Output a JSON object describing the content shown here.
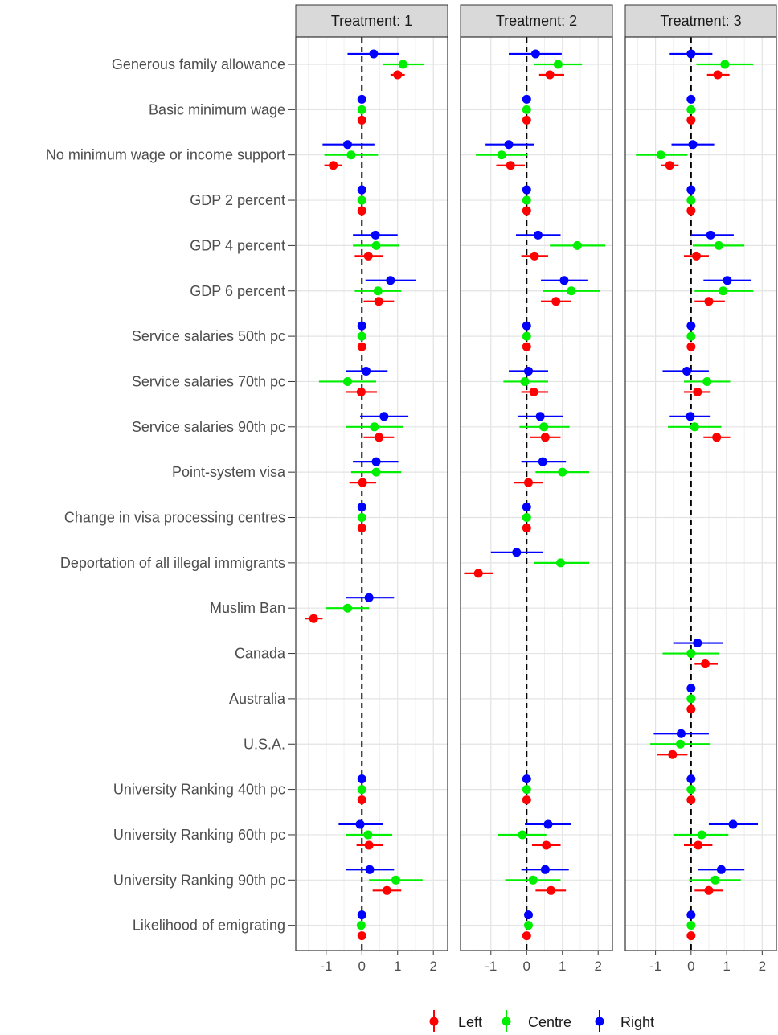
{
  "chart_data": {
    "type": "scatter",
    "subtype": "coefficient-plot-with-error-bars",
    "x_ticks": [
      -1,
      0,
      1,
      2
    ],
    "xlim": [
      -1.85,
      2.4
    ],
    "reference_line": 0,
    "grid": true,
    "legend_position": "bottom",
    "series": [
      {
        "name": "Left",
        "color": "#ff0000"
      },
      {
        "name": "Centre",
        "color": "#00ee00"
      },
      {
        "name": "Right",
        "color": "#0000ff"
      }
    ],
    "categories": [
      "Generous family allowance",
      "Basic minimum wage",
      "No minimum wage or income support",
      "GDP 2 percent",
      "GDP 4 percent",
      "GDP 6 percent",
      "Service salaries 50th pc",
      "Service salaries 70th pc",
      "Service salaries 90th pc",
      "Point-system visa",
      "Change in visa processing centres",
      "Deportation of all illegal immigrants",
      "Muslim Ban",
      "Canada",
      "Australia",
      "U.S.A.",
      "University Ranking 40th pc",
      "University Ranking 60th pc",
      "University Ranking 90th pc",
      "Likelihood of emigrating"
    ],
    "panels": [
      {
        "title": "Treatment: 1",
        "estimates": [
          {
            "Left": [
              1.0,
              0.8,
              1.2
            ],
            "Centre": [
              1.15,
              0.6,
              1.75
            ],
            "Right": [
              0.33,
              -0.4,
              1.05
            ]
          },
          {
            "Left": [
              0,
              0,
              0
            ],
            "Centre": [
              0,
              0,
              0
            ],
            "Right": [
              0,
              0,
              0
            ]
          },
          {
            "Left": [
              -0.8,
              -1.05,
              -0.55
            ],
            "Centre": [
              -0.3,
              -1.05,
              0.45
            ],
            "Right": [
              -0.4,
              -1.1,
              0.35
            ]
          },
          {
            "Left": [
              0,
              0,
              0
            ],
            "Centre": [
              0,
              0,
              0
            ],
            "Right": [
              0,
              0,
              0
            ]
          },
          {
            "Left": [
              0.18,
              -0.2,
              0.58
            ],
            "Centre": [
              0.4,
              -0.25,
              1.05
            ],
            "Right": [
              0.38,
              -0.25,
              1.0
            ]
          },
          {
            "Left": [
              0.47,
              0.05,
              0.9
            ],
            "Centre": [
              0.45,
              -0.2,
              1.1
            ],
            "Right": [
              0.8,
              0.1,
              1.5
            ]
          },
          {
            "Left": [
              0,
              0,
              0
            ],
            "Centre": [
              0,
              0,
              0
            ],
            "Right": [
              0,
              0,
              0
            ]
          },
          {
            "Left": [
              -0.02,
              -0.45,
              0.42
            ],
            "Centre": [
              -0.4,
              -1.2,
              0.4
            ],
            "Right": [
              0.12,
              -0.45,
              0.72
            ]
          },
          {
            "Left": [
              0.48,
              0.05,
              0.9
            ],
            "Centre": [
              0.35,
              -0.45,
              1.15
            ],
            "Right": [
              0.62,
              -0.05,
              1.3
            ]
          },
          {
            "Left": [
              0.02,
              -0.35,
              0.4
            ],
            "Centre": [
              0.4,
              -0.3,
              1.1
            ],
            "Right": [
              0.4,
              -0.25,
              1.02
            ]
          },
          {
            "Left": [
              0,
              0,
              0
            ],
            "Centre": [
              0,
              0,
              0
            ],
            "Right": [
              0,
              0,
              0
            ]
          },
          null,
          {
            "Left": [
              -1.35,
              -1.6,
              -1.1
            ],
            "Centre": [
              -0.4,
              -1.0,
              0.2
            ],
            "Right": [
              0.2,
              -0.45,
              0.9
            ]
          },
          null,
          null,
          null,
          {
            "Left": [
              0,
              0,
              0
            ],
            "Centre": [
              0,
              0,
              0
            ],
            "Right": [
              0,
              0,
              0
            ]
          },
          {
            "Left": [
              0.2,
              -0.15,
              0.6
            ],
            "Centre": [
              0.17,
              -0.45,
              0.85
            ],
            "Right": [
              -0.05,
              -0.65,
              0.58
            ]
          },
          {
            "Left": [
              0.7,
              0.3,
              1.1
            ],
            "Centre": [
              0.95,
              0.2,
              1.7
            ],
            "Right": [
              0.22,
              -0.45,
              0.9
            ]
          },
          {
            "Left": [
              0,
              0,
              0
            ],
            "Centre": [
              -0.02,
              -0.08,
              0.04
            ],
            "Right": [
              0,
              0,
              0
            ]
          }
        ]
      },
      {
        "title": "Treatment: 2",
        "estimates": [
          {
            "Left": [
              0.65,
              0.35,
              1.05
            ],
            "Centre": [
              0.88,
              0.2,
              1.55
            ],
            "Right": [
              0.25,
              -0.5,
              0.98
            ]
          },
          {
            "Left": [
              0,
              0,
              0
            ],
            "Centre": [
              0,
              0,
              0
            ],
            "Right": [
              0,
              0,
              0
            ]
          },
          {
            "Left": [
              -0.45,
              -0.85,
              -0.05
            ],
            "Centre": [
              -0.7,
              -1.42,
              0.02
            ],
            "Right": [
              -0.5,
              -1.15,
              0.2
            ]
          },
          {
            "Left": [
              0,
              0,
              0
            ],
            "Centre": [
              0,
              0,
              0
            ],
            "Right": [
              0,
              0,
              0
            ]
          },
          {
            "Left": [
              0.22,
              -0.15,
              0.6
            ],
            "Centre": [
              1.42,
              0.65,
              2.2
            ],
            "Right": [
              0.32,
              -0.3,
              0.95
            ]
          },
          {
            "Left": [
              0.82,
              0.4,
              1.25
            ],
            "Centre": [
              1.25,
              0.45,
              2.05
            ],
            "Right": [
              1.05,
              0.4,
              1.7
            ]
          },
          {
            "Left": [
              0,
              0,
              0
            ],
            "Centre": [
              0,
              0,
              0
            ],
            "Right": [
              0,
              0,
              0
            ]
          },
          {
            "Left": [
              0.2,
              -0.15,
              0.6
            ],
            "Centre": [
              -0.05,
              -0.65,
              0.6
            ],
            "Right": [
              0.05,
              -0.5,
              0.6
            ]
          },
          {
            "Left": [
              0.52,
              0.1,
              0.95
            ],
            "Centre": [
              0.48,
              -0.2,
              1.2
            ],
            "Right": [
              0.38,
              -0.25,
              1.02
            ]
          },
          {
            "Left": [
              0.05,
              -0.35,
              0.45
            ],
            "Centre": [
              1.0,
              0.25,
              1.75
            ],
            "Right": [
              0.45,
              -0.15,
              1.1
            ]
          },
          {
            "Left": [
              0,
              0,
              0
            ],
            "Centre": [
              0,
              0,
              0
            ],
            "Right": [
              0,
              0,
              0
            ]
          },
          {
            "Left": [
              -1.35,
              -1.75,
              -0.95
            ],
            "Centre": [
              0.95,
              0.2,
              1.75
            ],
            "Right": [
              -0.28,
              -1.0,
              0.45
            ]
          },
          null,
          null,
          null,
          null,
          {
            "Left": [
              0,
              0,
              0
            ],
            "Centre": [
              0,
              0,
              0
            ],
            "Right": [
              0,
              0,
              0
            ]
          },
          {
            "Left": [
              0.55,
              0.15,
              0.95
            ],
            "Centre": [
              -0.12,
              -0.8,
              0.55
            ],
            "Right": [
              0.6,
              -0.05,
              1.25
            ]
          },
          {
            "Left": [
              0.68,
              0.25,
              1.1
            ],
            "Centre": [
              0.18,
              -0.6,
              0.95
            ],
            "Right": [
              0.52,
              -0.15,
              1.18
            ]
          },
          {
            "Left": [
              0,
              0,
              0
            ],
            "Centre": [
              0.05,
              0.0,
              0.1
            ],
            "Right": [
              0.05,
              0.0,
              0.1
            ]
          }
        ]
      },
      {
        "title": "Treatment: 3",
        "estimates": [
          {
            "Left": [
              0.75,
              0.45,
              1.08
            ],
            "Centre": [
              0.95,
              0.15,
              1.75
            ],
            "Right": [
              0.0,
              -0.6,
              0.6
            ]
          },
          {
            "Left": [
              0,
              0,
              0
            ],
            "Centre": [
              0,
              0,
              0
            ],
            "Right": [
              0,
              0,
              0
            ]
          },
          {
            "Left": [
              -0.6,
              -0.85,
              -0.35
            ],
            "Centre": [
              -0.85,
              -1.55,
              -0.1
            ],
            "Right": [
              0.05,
              -0.55,
              0.65
            ]
          },
          {
            "Left": [
              0,
              0,
              0
            ],
            "Centre": [
              0,
              0,
              0
            ],
            "Right": [
              0,
              0,
              0
            ]
          },
          {
            "Left": [
              0.15,
              -0.2,
              0.5
            ],
            "Centre": [
              0.78,
              0.05,
              1.5
            ],
            "Right": [
              0.55,
              0.0,
              1.2
            ]
          },
          {
            "Left": [
              0.5,
              0.1,
              0.95
            ],
            "Centre": [
              0.9,
              0.1,
              1.75
            ],
            "Right": [
              1.02,
              0.35,
              1.7
            ]
          },
          {
            "Left": [
              0,
              0,
              0
            ],
            "Centre": [
              0,
              0,
              0
            ],
            "Right": [
              0,
              0,
              0
            ]
          },
          {
            "Left": [
              0.18,
              -0.2,
              0.55
            ],
            "Centre": [
              0.45,
              -0.2,
              1.1
            ],
            "Right": [
              -0.12,
              -0.8,
              0.5
            ]
          },
          {
            "Left": [
              0.72,
              0.35,
              1.1
            ],
            "Centre": [
              0.1,
              -0.65,
              0.85
            ],
            "Right": [
              -0.02,
              -0.6,
              0.55
            ]
          },
          null,
          null,
          null,
          null,
          {
            "Left": [
              0.4,
              0.1,
              0.75
            ],
            "Centre": [
              0.0,
              -0.8,
              0.78
            ],
            "Right": [
              0.18,
              -0.5,
              0.9
            ]
          },
          {
            "Left": [
              0,
              0,
              0
            ],
            "Centre": [
              0,
              0,
              0
            ],
            "Right": [
              0,
              0,
              0
            ]
          },
          {
            "Left": [
              -0.52,
              -0.95,
              -0.1
            ],
            "Centre": [
              -0.3,
              -1.15,
              0.55
            ],
            "Right": [
              -0.28,
              -1.05,
              0.5
            ]
          },
          {
            "Left": [
              0,
              0,
              0
            ],
            "Centre": [
              0,
              0,
              0
            ],
            "Right": [
              0,
              0,
              0
            ]
          },
          {
            "Left": [
              0.2,
              -0.2,
              0.6
            ],
            "Centre": [
              0.3,
              -0.5,
              1.05
            ],
            "Right": [
              1.18,
              0.5,
              1.88
            ]
          },
          {
            "Left": [
              0.5,
              0.1,
              0.9
            ],
            "Centre": [
              0.68,
              -0.05,
              1.4
            ],
            "Right": [
              0.85,
              0.2,
              1.5
            ]
          },
          {
            "Left": [
              0,
              0,
              0
            ],
            "Centre": [
              0,
              0,
              0
            ],
            "Right": [
              0,
              0,
              0
            ]
          }
        ]
      }
    ]
  }
}
